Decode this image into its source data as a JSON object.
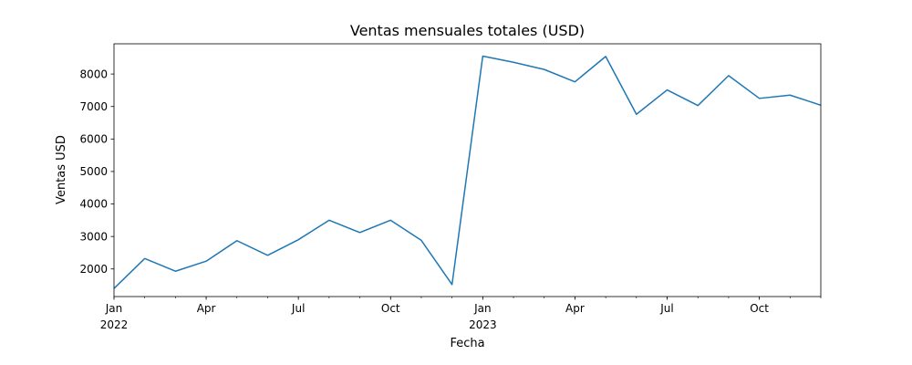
{
  "chart_data": {
    "type": "line",
    "title": "Ventas mensuales totales (USD)",
    "xlabel": "Fecha",
    "ylabel": "Ventas USD",
    "ylim": [
      1150,
      8930
    ],
    "xlim": [
      "2022-01",
      "2023-12"
    ],
    "grid": false,
    "legend": "none",
    "series_color": "#1f77b4",
    "yticks": [
      2000,
      3000,
      4000,
      5000,
      6000,
      7000,
      8000
    ],
    "xticks": [
      {
        "month": "2022-01",
        "label": "Jan",
        "year_label": "2022"
      },
      {
        "month": "2022-04",
        "label": "Apr",
        "year_label": ""
      },
      {
        "month": "2022-07",
        "label": "Jul",
        "year_label": ""
      },
      {
        "month": "2022-10",
        "label": "Oct",
        "year_label": ""
      },
      {
        "month": "2023-01",
        "label": "Jan",
        "year_label": "2023"
      },
      {
        "month": "2023-04",
        "label": "Apr",
        "year_label": ""
      },
      {
        "month": "2023-07",
        "label": "Jul",
        "year_label": ""
      },
      {
        "month": "2023-10",
        "label": "Oct",
        "year_label": ""
      }
    ],
    "x": [
      "2022-01",
      "2022-02",
      "2022-03",
      "2022-04",
      "2022-05",
      "2022-06",
      "2022-07",
      "2022-08",
      "2022-09",
      "2022-10",
      "2022-11",
      "2022-12",
      "2023-01",
      "2023-02",
      "2023-03",
      "2023-04",
      "2023-05",
      "2023-06",
      "2023-07",
      "2023-08",
      "2023-09",
      "2023-10",
      "2023-11",
      "2023-12"
    ],
    "series": [
      {
        "values": [
          1400,
          2320,
          1930,
          2240,
          2870,
          2420,
          2900,
          3500,
          3120,
          3500,
          2880,
          1520,
          8550,
          8360,
          8140,
          7760,
          8540,
          6760,
          7510,
          7030,
          7950,
          7250,
          7350,
          7040
        ]
      }
    ]
  }
}
